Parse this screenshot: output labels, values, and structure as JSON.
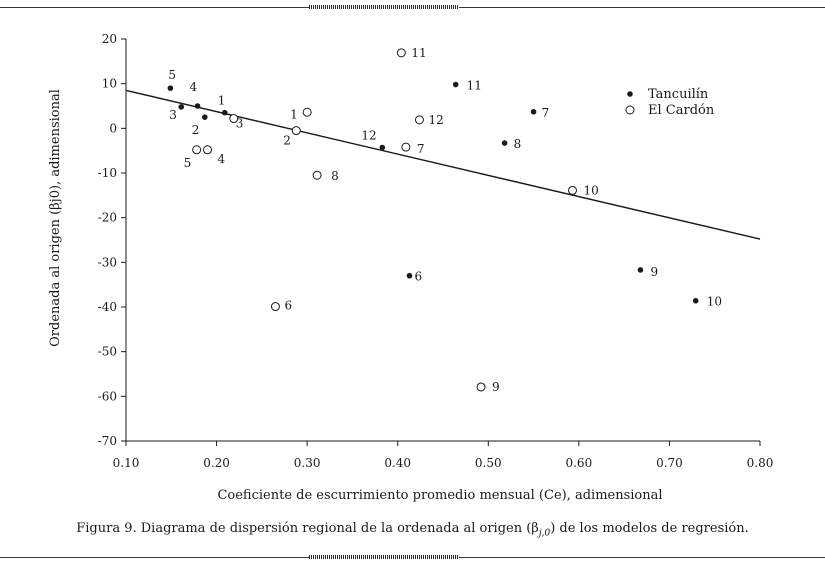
{
  "caption": "Figura 9. Diagrama de dispersión regional de la ordenada al origen (β",
  "caption_sub": "j,0",
  "caption_end": ") de los modelos de regresión.",
  "chart_data": {
    "type": "scatter",
    "title": "",
    "xlabel": "Coeficiente de escurrimiento promedio mensual (Ce), adimensional",
    "ylabel": "Ordenada al origen (βj0), adimensional",
    "xlim": [
      0.1,
      0.8
    ],
    "ylim": [
      -70,
      20
    ],
    "x_ticks": [
      "0.10",
      "0.20",
      "0.30",
      "0.40",
      "0.50",
      "0.60",
      "0.70",
      "0.80"
    ],
    "y_ticks": [
      "20",
      "10",
      "0",
      "-10",
      "-20",
      "-30",
      "-40",
      "-50",
      "-60",
      "-70"
    ],
    "grid": false,
    "legend_position": "top-right",
    "series": [
      {
        "name": "Tancuilín",
        "marker": "filled-dot",
        "color": "#1a1a1a",
        "points": [
          {
            "label": "1",
            "x": 0.209,
            "y": 3.5
          },
          {
            "label": "2",
            "x": 0.187,
            "y": 2.5
          },
          {
            "label": "3",
            "x": 0.161,
            "y": 4.8
          },
          {
            "label": "4",
            "x": 0.179,
            "y": 5.0
          },
          {
            "label": "5",
            "x": 0.149,
            "y": 9.0
          },
          {
            "label": "6",
            "x": 0.413,
            "y": -33.0
          },
          {
            "label": "7",
            "x": 0.55,
            "y": 3.7
          },
          {
            "label": "8",
            "x": 0.518,
            "y": -3.3
          },
          {
            "label": "9",
            "x": 0.668,
            "y": -31.7
          },
          {
            "label": "10",
            "x": 0.729,
            "y": -38.6
          },
          {
            "label": "11",
            "x": 0.464,
            "y": 9.8
          },
          {
            "label": "12",
            "x": 0.383,
            "y": -4.3
          }
        ]
      },
      {
        "name": "El Cardón",
        "marker": "open-circle",
        "color": "#1a1a1a",
        "points": [
          {
            "label": "1",
            "x": 0.3,
            "y": 3.6
          },
          {
            "label": "2",
            "x": 0.288,
            "y": -0.5
          },
          {
            "label": "3",
            "x": 0.219,
            "y": 2.2
          },
          {
            "label": "4",
            "x": 0.19,
            "y": -4.8
          },
          {
            "label": "5",
            "x": 0.178,
            "y": -4.8
          },
          {
            "label": "6",
            "x": 0.265,
            "y": -39.9
          },
          {
            "label": "7",
            "x": 0.409,
            "y": -4.2
          },
          {
            "label": "8",
            "x": 0.311,
            "y": -10.5
          },
          {
            "label": "9",
            "x": 0.492,
            "y": -57.9
          },
          {
            "label": "10",
            "x": 0.593,
            "y": -13.9
          },
          {
            "label": "11",
            "x": 0.404,
            "y": 16.9
          },
          {
            "label": "12",
            "x": 0.424,
            "y": 1.9
          }
        ]
      }
    ],
    "trendline": {
      "x1": 0.1,
      "y1": 8.5,
      "x2": 0.8,
      "y2": -24.8
    }
  }
}
